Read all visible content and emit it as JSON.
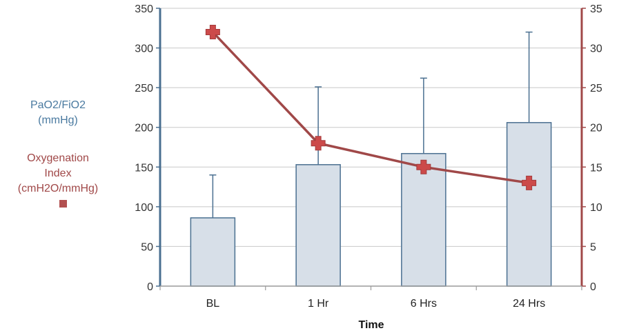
{
  "chart_data": {
    "type": "bar",
    "categories": [
      "BL",
      "1 Hr",
      "6 Hrs",
      "24 Hrs"
    ],
    "xlabel": "Time",
    "series": [
      {
        "name": "PaO2/FiO2 (mmHg)",
        "kind": "bar",
        "axis": "left",
        "values": [
          86,
          153,
          167,
          206
        ],
        "error_upper": [
          140,
          251,
          262,
          320
        ],
        "color": "#d7dfe8",
        "edge_color": "#4a6f90"
      },
      {
        "name": "Oxygenation Index (cmH2O/mmHg)",
        "kind": "line",
        "axis": "right",
        "values": [
          32,
          18,
          15,
          13
        ],
        "color": "#a04848"
      }
    ],
    "left_axis": {
      "label_lines": [
        "PaO2/FiO2",
        "(mmHg)"
      ],
      "ylim": [
        0,
        350
      ],
      "ticks": [
        0,
        50,
        100,
        150,
        200,
        250,
        300,
        350
      ],
      "color": "#4a6f90"
    },
    "right_axis": {
      "ylim": [
        0,
        35
      ],
      "ticks": [
        0,
        5,
        10,
        15,
        20,
        25,
        30,
        35
      ],
      "color": "#a04848"
    },
    "legend_lines": [
      "Oxygenation",
      "Index",
      "(cmH2O/mmHg)"
    ],
    "grid": true
  }
}
